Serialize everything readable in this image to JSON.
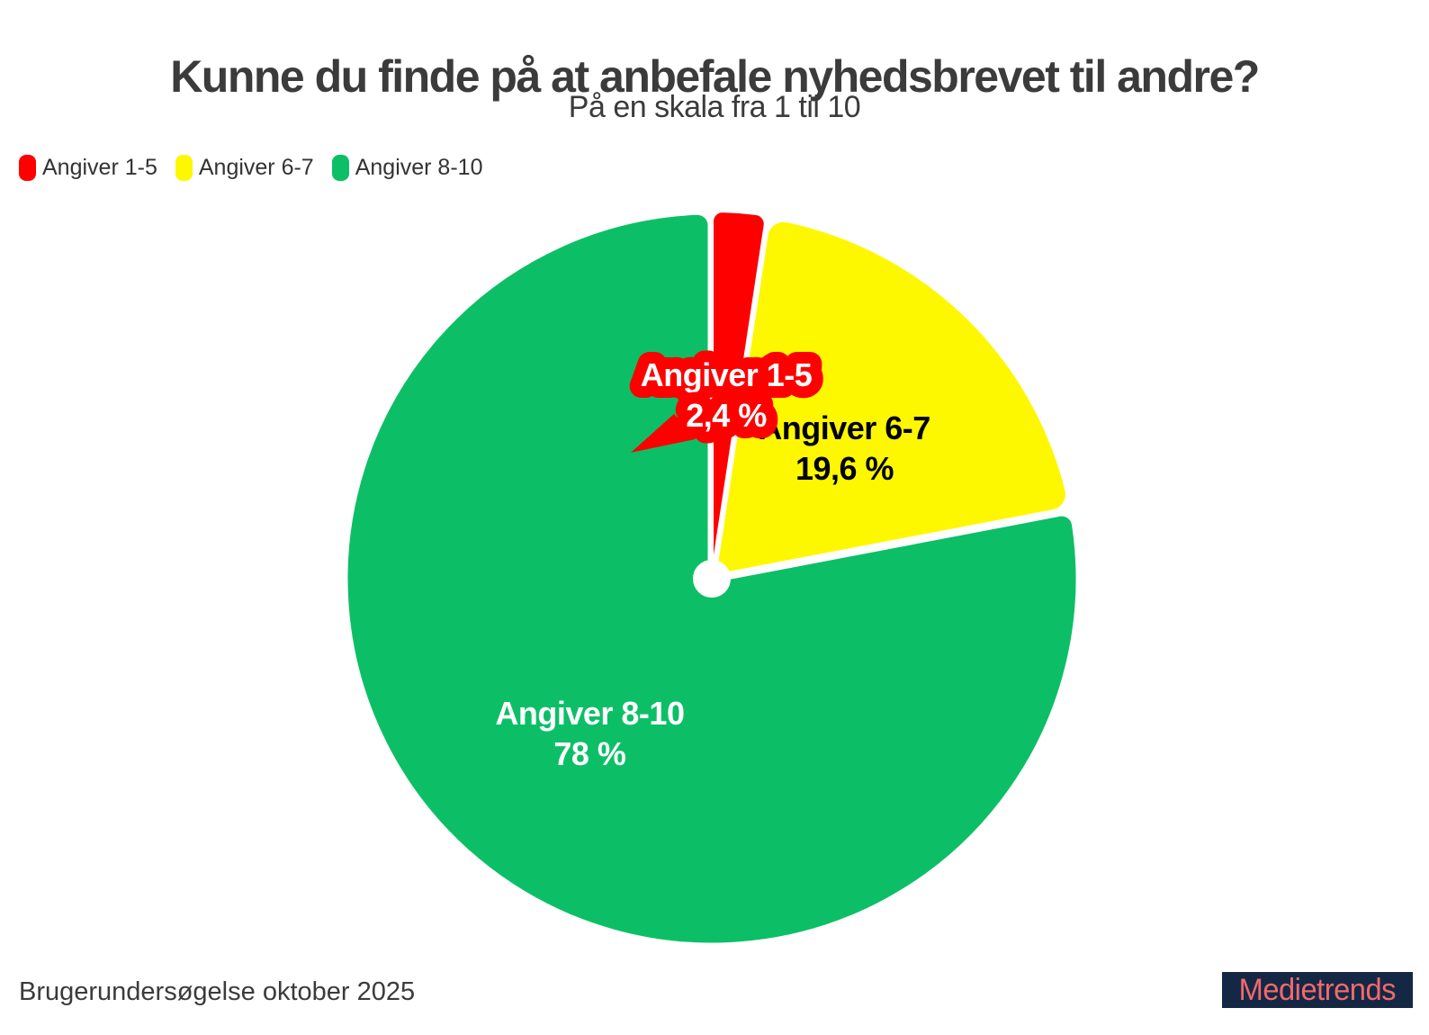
{
  "title": "Kunne du finde på at anbefale nyhedsbrevet til andre?",
  "subtitle": "På en skala fra 1 til 10",
  "legend": [
    {
      "label": "Angiver 1-5",
      "color": "#fe0000"
    },
    {
      "label": "Angiver 6-7",
      "color": "#fdf800"
    },
    {
      "label": "Angiver 8-10",
      "color": "#0cbf66"
    }
  ],
  "footer": {
    "source": "Brugerundersøgelse oktober 2025",
    "logo": "Medietrends"
  },
  "style": {
    "background": "#ffffff",
    "title_color": "#3b3b3b",
    "legend_text_color": "#333333",
    "logo_background": "#142845",
    "logo_text_color": "#f2696c",
    "slice_separator_color": "#ffffff"
  },
  "chart_data": {
    "type": "pie",
    "title": "Kunne du finde på at anbefale nyhedsbrevet til andre?",
    "subtitle": "På en skala fra 1 til 10",
    "legend_position": "top-left",
    "start_angle_deg": 0,
    "clockwise": true,
    "units": "%",
    "slices": [
      {
        "label": "Angiver 1-5",
        "value": 2.4,
        "display": "2,4 %",
        "color": "#fe0000",
        "text_color": "#ffffff",
        "halo_color": "#fe0000"
      },
      {
        "label": "Angiver 6-7",
        "value": 19.6,
        "display": "19,6 %",
        "color": "#fdf800",
        "text_color": "#000000"
      },
      {
        "label": "Angiver 8-10",
        "value": 78,
        "display": "78 %",
        "color": "#0cbf66",
        "text_color": "#ffffff"
      }
    ]
  }
}
